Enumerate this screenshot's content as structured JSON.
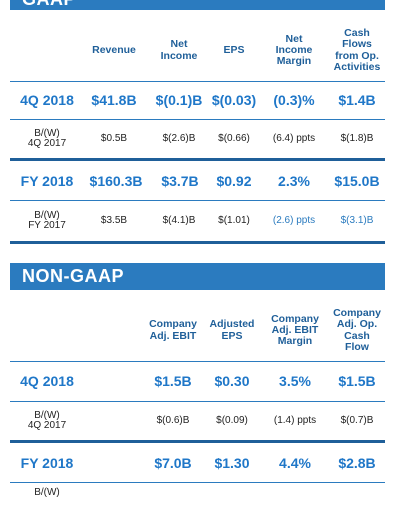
{
  "gaap": {
    "title": "GAAP",
    "headers": [
      "Revenue",
      "Net\nIncome",
      "EPS",
      "Net\nIncome\nMargin",
      "Cash\nFlows\nfrom Op.\nActivities"
    ],
    "rows": [
      {
        "label": "4Q 2018",
        "values": [
          "$41.8B",
          "$(0.1)B",
          "$(0.03)",
          "(0.3)%",
          "$1.4B"
        ]
      },
      {
        "label": "B/(W)\n4Q 2017",
        "values": [
          "$0.5B",
          "$(2.6)B",
          "$(0.66)",
          "(6.4) ppts",
          "$(1.8)B"
        ]
      },
      {
        "label": "FY 2018",
        "values": [
          "$160.3B",
          "$3.7B",
          "$0.92",
          "2.3%",
          "$15.0B"
        ]
      },
      {
        "label": "B/(W)\nFY 2017",
        "values": [
          "$3.5B",
          "$(4.1)B",
          "$(1.01)",
          "(2.6) ppts",
          "$(3.1)B"
        ]
      }
    ]
  },
  "nongaap": {
    "title": "NON-GAAP",
    "headers": [
      "Company\nAdj. EBIT",
      "Adjusted\nEPS",
      "Company\nAdj. EBIT\nMargin",
      "Company\nAdj. Op.\nCash\nFlow"
    ],
    "rows": [
      {
        "label": "4Q 2018",
        "values": [
          "$1.5B",
          "$0.30",
          "3.5%",
          "$1.5B"
        ]
      },
      {
        "label": "B/(W)\n4Q 2017",
        "values": [
          "$(0.6)B",
          "$(0.09)",
          "(1.4) ppts",
          "$(0.7)B"
        ]
      },
      {
        "label": "FY 2018",
        "values": [
          "$7.0B",
          "$1.30",
          "4.4%",
          "$2.8B"
        ]
      },
      {
        "label": "B/(W)",
        "values": [
          "",
          "",
          "",
          ""
        ]
      }
    ]
  },
  "colors": {
    "brand_blue": "#2b7bbf",
    "dark_blue": "#1f5f99",
    "value_blue": "#1f77c8"
  }
}
